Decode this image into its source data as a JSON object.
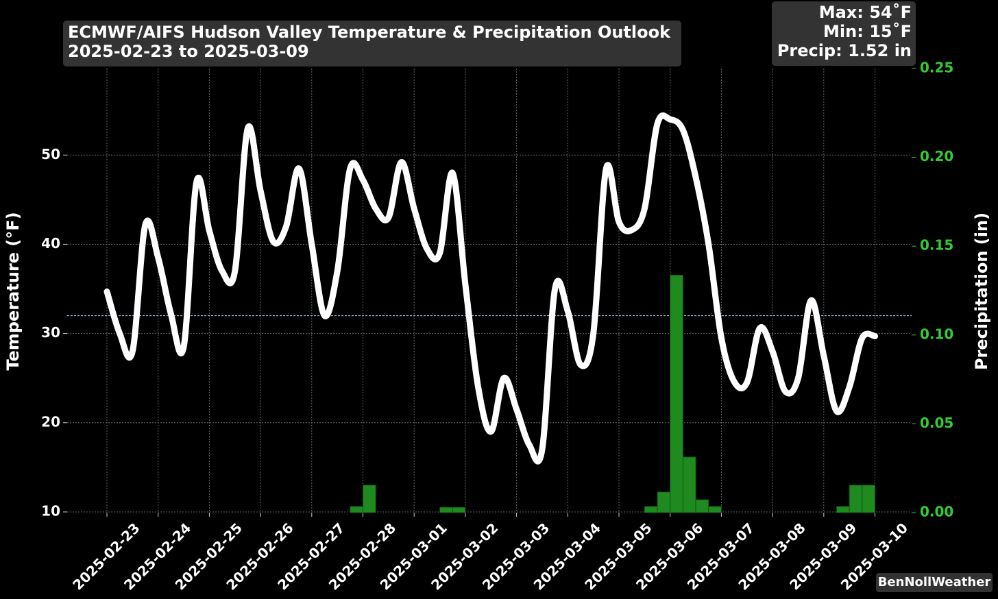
{
  "chart_data": {
    "type": "line",
    "title": "ECMWF/AIFS Hudson Valley Temperature & Precipitation Outlook",
    "subtitle": "2025-02-23 to 2025-03-09",
    "annotations": [
      "Max: 54˚F",
      "Min: 15˚F",
      "Precip: 1.52 in"
    ],
    "credit": "BenNollWeather",
    "y_label": "Temperature (°F)",
    "y2_label": "Precipitation (in)",
    "x": [
      "2025-02-23 00:00",
      "2025-02-23 06:00",
      "2025-02-23 12:00",
      "2025-02-23 18:00",
      "2025-02-24 00:00",
      "2025-02-24 06:00",
      "2025-02-24 12:00",
      "2025-02-24 18:00",
      "2025-02-25 00:00",
      "2025-02-25 06:00",
      "2025-02-25 12:00",
      "2025-02-25 18:00",
      "2025-02-26 00:00",
      "2025-02-26 06:00",
      "2025-02-26 12:00",
      "2025-02-26 18:00",
      "2025-02-27 00:00",
      "2025-02-27 06:00",
      "2025-02-27 12:00",
      "2025-02-27 18:00",
      "2025-02-28 00:00",
      "2025-02-28 06:00",
      "2025-02-28 12:00",
      "2025-02-28 18:00",
      "2025-03-01 00:00",
      "2025-03-01 06:00",
      "2025-03-01 12:00",
      "2025-03-01 18:00",
      "2025-03-02 00:00",
      "2025-03-02 06:00",
      "2025-03-02 12:00",
      "2025-03-02 18:00",
      "2025-03-03 00:00",
      "2025-03-03 06:00",
      "2025-03-03 12:00",
      "2025-03-03 18:00",
      "2025-03-04 00:00",
      "2025-03-04 06:00",
      "2025-03-04 12:00",
      "2025-03-04 18:00",
      "2025-03-05 00:00",
      "2025-03-05 06:00",
      "2025-03-05 12:00",
      "2025-03-05 18:00",
      "2025-03-06 00:00",
      "2025-03-06 06:00",
      "2025-03-06 12:00",
      "2025-03-06 18:00",
      "2025-03-07 00:00",
      "2025-03-07 06:00",
      "2025-03-07 12:00",
      "2025-03-07 18:00",
      "2025-03-08 00:00",
      "2025-03-08 06:00",
      "2025-03-08 12:00",
      "2025-03-08 18:00",
      "2025-03-09 00:00",
      "2025-03-09 06:00",
      "2025-03-09 12:00",
      "2025-03-09 18:00",
      "2025-03-10 00:00"
    ],
    "series": [
      {
        "color": "#ffffff",
        "values": [
          34.7,
          30,
          28,
          42.2,
          38.5,
          32.2,
          28.5,
          47,
          41.5,
          37,
          37,
          53,
          46,
          40.3,
          42,
          48.5,
          40,
          32,
          37,
          48.5,
          47.2,
          44,
          43,
          49.2,
          44,
          39.5,
          39,
          48,
          35.5,
          24,
          19,
          25,
          21.5,
          17.5,
          17,
          35,
          32.5,
          26.5,
          30,
          48.5,
          42.5,
          41.6,
          44,
          53.5,
          54,
          52.8,
          47.5,
          40,
          29.5,
          24.6,
          24.5,
          30.6,
          28,
          23.5,
          25,
          33.7,
          27.5,
          21.3,
          24,
          29.5,
          29.7
        ]
      },
      {
        "type": "bar",
        "axis": "y2",
        "color": "#1f8a1f",
        "x": [
          "2025-02-27 18:00",
          "2025-02-28 00:00",
          "2025-03-01 12:00",
          "2025-03-01 18:00",
          "2025-03-05 12:00",
          "2025-03-05 18:00",
          "2025-03-06 00:00",
          "2025-03-06 06:00",
          "2025-03-06 12:00",
          "2025-03-06 18:00",
          "2025-03-09 06:00",
          "2025-03-09 12:00",
          "2025-03-09 18:00"
        ],
        "values": [
          0.0035,
          0.0155,
          0.003,
          0.003,
          0.0035,
          0.0116,
          0.1337,
          0.0313,
          0.0073,
          0.0035,
          0.0035,
          0.0155,
          0.0155
        ]
      }
    ],
    "reference_line": 32,
    "reference_color": "#9bb8d8",
    "xlim": [
      "2025-02-22 05:22",
      "2025-03-10 17:11"
    ],
    "xticks": [
      "2025-02-23",
      "2025-02-24",
      "2025-02-25",
      "2025-02-26",
      "2025-02-27",
      "2025-02-28",
      "2025-03-01",
      "2025-03-02",
      "2025-03-03",
      "2025-03-04",
      "2025-03-05",
      "2025-03-06",
      "2025-03-07",
      "2025-03-08",
      "2025-03-09",
      "2025-03-10"
    ],
    "ylim": [
      9.92,
      59.7
    ],
    "yticks": [
      10,
      20,
      30,
      40,
      50
    ],
    "y2lim": [
      0,
      0.25
    ],
    "y2ticks": [
      {
        "value": 0,
        "label": "0.00"
      },
      {
        "value": 0.05,
        "label": "0.05"
      },
      {
        "value": 0.1,
        "label": "0.10"
      },
      {
        "value": 0.15,
        "label": "0.15"
      },
      {
        "value": 0.2,
        "label": "0.20"
      },
      {
        "value": 0.25,
        "label": "0.25"
      }
    ],
    "y2_color": "#32cd32",
    "grid": true
  }
}
